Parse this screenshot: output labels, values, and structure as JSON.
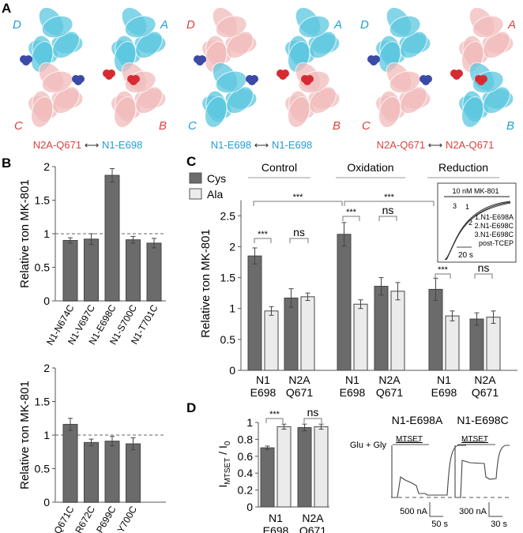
{
  "panels": {
    "A": "A",
    "B": "B",
    "C": "C",
    "D": "D"
  },
  "colors": {
    "cys": "#6b6b6b",
    "ala": "#ebebeb",
    "red": "#d9423e",
    "blue": "#1f9fd6",
    "cyan": "#5cc8e0",
    "pink": "#f2bcbc",
    "sphere_red": "#d62b33",
    "sphere_blue": "#3b4aa6"
  },
  "structures": [
    {
      "subunits": {
        "tl": "D",
        "tr": "A",
        "bl": "C",
        "br": "B"
      },
      "subunit_colors": {
        "tl": "blue",
        "tr": "blue",
        "bl": "red",
        "br": "red"
      },
      "caption_left": "N2A-Q671",
      "caption_right": "N1-E698",
      "caption_left_color": "red",
      "caption_right_color": "blue",
      "arrow": "⟷"
    },
    {
      "subunits": {
        "tl": "D",
        "tr": "A",
        "bl": "C",
        "br": "B"
      },
      "subunit_colors": {
        "tl": "red",
        "tr": "blue",
        "bl": "blue",
        "br": "red"
      },
      "caption_left": "N1-E698",
      "caption_right": "N1-E698",
      "caption_left_color": "blue",
      "caption_right_color": "blue",
      "arrow": "⟷"
    },
    {
      "subunits": {
        "tl": "D",
        "tr": "A",
        "bl": "C",
        "br": "B"
      },
      "subunit_colors": {
        "tl": "blue",
        "tr": "red",
        "bl": "red",
        "br": "blue"
      },
      "caption_left": "N2A-Q671",
      "caption_right": "N2A-Q671",
      "caption_left_color": "red",
      "caption_right_color": "red",
      "arrow": "⟷"
    }
  ],
  "chart_data": [
    {
      "id": "B-top",
      "type": "bar",
      "ylabel": "Relative τon MK-801",
      "ylim": [
        0,
        2
      ],
      "yticks": [
        "0",
        "0.5",
        "1",
        "1.5",
        "2"
      ],
      "ytick_values": [
        0,
        0.5,
        1,
        1.5,
        2
      ],
      "reference_line": 1,
      "categories": [
        "N1-N674C",
        "N1-V697C",
        "N1-E698C",
        "N1-S700C",
        "N1-T701C"
      ],
      "values": [
        0.9,
        0.92,
        1.87,
        0.91,
        0.86
      ],
      "errors": [
        0.04,
        0.08,
        0.1,
        0.05,
        0.07
      ]
    },
    {
      "id": "B-bottom",
      "type": "bar",
      "ylabel": "Relative τon MK-801",
      "ylim": [
        0,
        2
      ],
      "yticks": [
        "0",
        "0.5",
        "1",
        "1.5",
        "2"
      ],
      "ytick_values": [
        0,
        0.5,
        1,
        1.5,
        2
      ],
      "reference_line": 1,
      "categories": [
        "N2A-Q671C",
        "N2A-R672C",
        "N2A-P699C",
        "N2A-Y700C"
      ],
      "values": [
        1.16,
        0.89,
        0.91,
        0.87
      ],
      "errors": [
        0.09,
        0.05,
        0.07,
        0.09
      ]
    },
    {
      "id": "C",
      "type": "bar",
      "ylabel": "Relative τon MK-801",
      "ylim": [
        0,
        2.75
      ],
      "yticks": [
        "0",
        "0.5",
        "1",
        "1.5",
        "2",
        "2.5"
      ],
      "ytick_values": [
        0,
        0.5,
        1,
        1.5,
        2,
        2.5
      ],
      "legend": [
        {
          "name": "Cys"
        },
        {
          "name": "Ala"
        }
      ],
      "groups": [
        "Control",
        "Oxidation",
        "Reduction"
      ],
      "categories": [
        [
          "N1",
          "E698"
        ],
        [
          "N2A",
          "Q671"
        ],
        [
          "N1",
          "E698"
        ],
        [
          "N2A",
          "Q671"
        ],
        [
          "N1",
          "E698"
        ],
        [
          "N2A",
          "Q671"
        ]
      ],
      "series": [
        {
          "name": "Cys",
          "values": [
            1.85,
            1.17,
            2.2,
            1.36,
            1.31,
            0.83
          ],
          "errors": [
            0.13,
            0.15,
            0.19,
            0.14,
            0.18,
            0.1
          ]
        },
        {
          "name": "Ala",
          "values": [
            0.96,
            1.19,
            1.07,
            1.28,
            0.88,
            0.86
          ],
          "errors": [
            0.07,
            0.06,
            0.07,
            0.14,
            0.08,
            0.1
          ]
        }
      ],
      "annotations": [
        "***",
        "ns",
        "***",
        "ns",
        "***",
        "ns",
        "***",
        "***"
      ],
      "inset": {
        "title": "10 nM MK-801",
        "legend": [
          "1.N1-E698A",
          "2.N1-E698C",
          "3.N1-E698C",
          "post-TCEP"
        ],
        "curve_labels": [
          "3",
          "1",
          "2"
        ],
        "scalebar": "20 s"
      }
    },
    {
      "id": "D",
      "type": "bar",
      "ylabel_main": "I",
      "ylabel_sub": "MTSET",
      "ylabel_den": "/ I",
      "ylabel_den_sub": "0",
      "ylim": [
        0,
        1
      ],
      "yticks": [
        "0",
        "0.2",
        "0.4",
        "0.6",
        "0.8",
        "1"
      ],
      "ytick_values": [
        0,
        0.2,
        0.4,
        0.6,
        0.8,
        1
      ],
      "categories": [
        [
          "N1",
          "E698"
        ],
        [
          "N2A",
          "Q671"
        ]
      ],
      "series": [
        {
          "name": "Cys",
          "values": [
            0.7,
            0.94
          ]
        },
        {
          "name": "Ala",
          "values": [
            0.95,
            0.95
          ]
        }
      ],
      "errors": [
        [
          0.02,
          0.04
        ],
        [
          0.03,
          0.03
        ]
      ],
      "annotations": [
        "***",
        "ns"
      ]
    }
  ],
  "traces": {
    "solution_label": "Glu + Gly",
    "drug_label": "MTSET",
    "items": [
      {
        "title": "N1-E698A",
        "scale_current": "500 nA",
        "scale_time": "50 s"
      },
      {
        "title": "N1-E698C",
        "scale_current": "300 nA",
        "scale_time": "30 s"
      }
    ]
  }
}
